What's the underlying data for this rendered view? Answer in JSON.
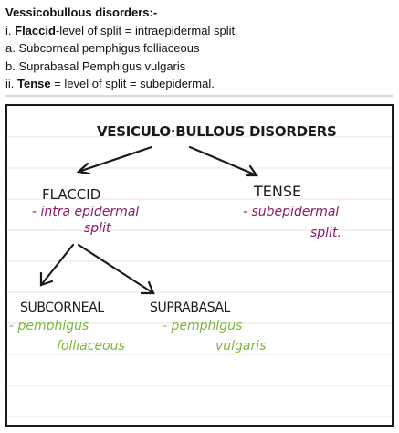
{
  "doc": {
    "heading": "Vessicobullous disorders:-",
    "lines": [
      {
        "prefix": "i. ",
        "bold": "Flaccid",
        "rest": "-level of split = intraepidermal split"
      },
      {
        "prefix": "a. Subcorneal pemphigus folliaceous",
        "bold": "",
        "rest": ""
      },
      {
        "prefix": "b. Suprabasal Pemphigus vulgaris",
        "bold": "",
        "rest": ""
      },
      {
        "prefix": "ii. ",
        "bold": "Tense",
        "rest": " = level of split = subepidermal."
      }
    ]
  },
  "notes": {
    "title": "VESICULO·BULLOUS DISORDERS",
    "flaccid": "FLACCID",
    "flaccid_desc_1": "- intra epidermal",
    "flaccid_desc_2": "split",
    "tense": "TENSE",
    "tense_desc_1": "- subepidermal",
    "tense_desc_2": "split.",
    "subcorneal": "SUBCORNEAL",
    "subcorneal_desc_1": "- pemphigus",
    "subcorneal_desc_2": "folliaceous",
    "suprabasal": "SUPRABASAL",
    "suprabasal_desc_1": "- pemphigus",
    "suprabasal_desc_2": "vulgaris",
    "colors": {
      "ink": "#1a1a1a",
      "purple": "#8a1a66",
      "green": "#7ab83a",
      "ruled_line": "#f1dcdc"
    }
  }
}
